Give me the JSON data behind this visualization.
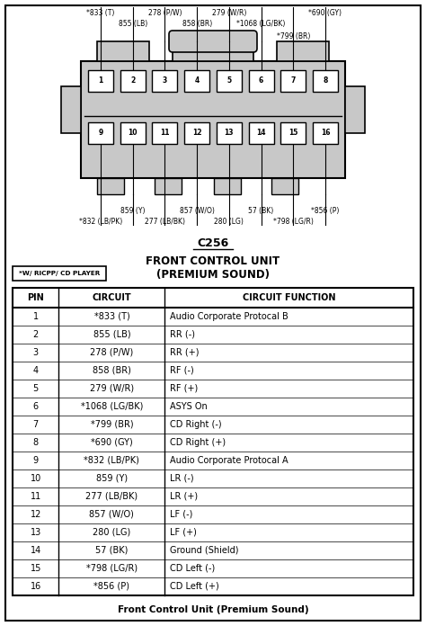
{
  "title_connector": "C256",
  "title_unit": "FRONT CONTROL UNIT",
  "title_premium": "(PREMIUM SOUND)",
  "note_label": "*W/ RICPP/ CD PLAYER",
  "footer": "Front Control Unit (Premium Sound)",
  "pin_rows": [
    [
      1,
      2,
      3,
      4,
      5,
      6,
      7,
      8
    ],
    [
      9,
      10,
      11,
      12,
      13,
      14,
      15,
      16
    ]
  ],
  "table_headers": [
    "PIN",
    "CIRCUIT",
    "CIRCUIT FUNCTION"
  ],
  "table_data": [
    [
      "1",
      "*833 (T)",
      "Audio Corporate Protocal B"
    ],
    [
      "2",
      "855 (LB)",
      "RR (-)"
    ],
    [
      "3",
      "278 (P/W)",
      "RR (+)"
    ],
    [
      "4",
      "858 (BR)",
      "RF (-)"
    ],
    [
      "5",
      "279 (W/R)",
      "RF (+)"
    ],
    [
      "6",
      "*1068 (LG/BK)",
      "ASYS On"
    ],
    [
      "7",
      "*799 (BR)",
      "CD Right (-)"
    ],
    [
      "8",
      "*690 (GY)",
      "CD Right (+)"
    ],
    [
      "9",
      "*832 (LB/PK)",
      "Audio Corporate Protocal A"
    ],
    [
      "10",
      "859 (Y)",
      "LR (-)"
    ],
    [
      "11",
      "277 (LB/BK)",
      "LR (+)"
    ],
    [
      "12",
      "857 (W/O)",
      "LF (-)"
    ],
    [
      "13",
      "280 (LG)",
      "LF (+)"
    ],
    [
      "14",
      "57 (BK)",
      "Ground (Shield)"
    ],
    [
      "15",
      "*798 (LG/R)",
      "CD Left (-)"
    ],
    [
      "16",
      "*856 (P)",
      "CD Left (+)"
    ]
  ],
  "bg_color": "#ffffff",
  "border_color": "#000000",
  "connector_fill": "#c8c8c8",
  "pin_fill": "#ffffff",
  "top_wire_labels": [
    {
      "text": "*833 (T)",
      "pin_idx": 0,
      "row": 0
    },
    {
      "text": "278 (P/W)",
      "pin_idx": 2,
      "row": 0
    },
    {
      "text": "279 (W/R)",
      "pin_idx": 4,
      "row": 0
    },
    {
      "text": "*690 (GY)",
      "pin_idx": 7,
      "row": 0
    },
    {
      "text": "855 (LB)",
      "pin_idx": 1,
      "row": 1
    },
    {
      "text": "858 (BR)",
      "pin_idx": 3,
      "row": 1
    },
    {
      "text": "*1068 (LG/BK)",
      "pin_idx": 5,
      "row": 1
    },
    {
      "text": "*799 (BR)",
      "pin_idx": 6,
      "row": 2
    }
  ],
  "bot_wire_labels": [
    {
      "text": "859 (Y)",
      "pin_idx": 1,
      "row": 0
    },
    {
      "text": "857 (W/O)",
      "pin_idx": 3,
      "row": 0
    },
    {
      "text": "57 (BK)",
      "pin_idx": 5,
      "row": 0
    },
    {
      "text": "*856 (P)",
      "pin_idx": 7,
      "row": 0
    },
    {
      "text": "*832 (LB/PK)",
      "pin_idx": 0,
      "row": 1
    },
    {
      "text": "277 (LB/BK)",
      "pin_idx": 2,
      "row": 1
    },
    {
      "text": "280 (LG)",
      "pin_idx": 4,
      "row": 1
    },
    {
      "text": "*798 (LG/R)",
      "pin_idx": 6,
      "row": 1
    }
  ]
}
